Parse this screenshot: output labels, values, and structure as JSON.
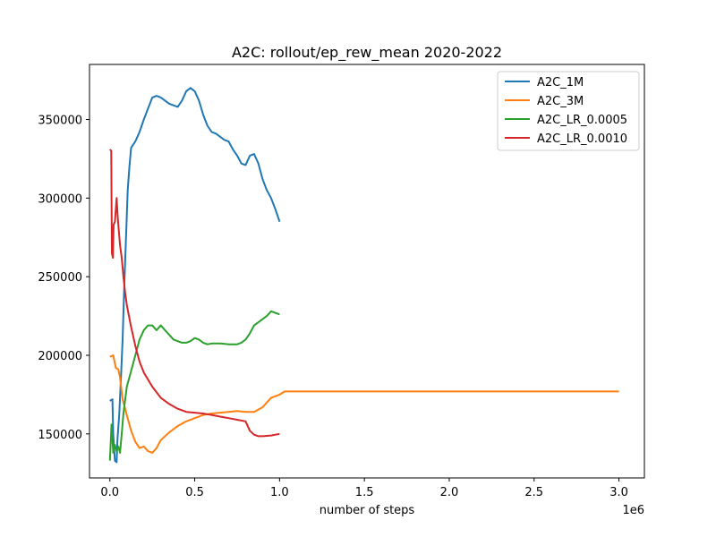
{
  "chart_data": {
    "type": "line",
    "title": "A2C: rollout/ep_rew_mean 2020-2022",
    "xlabel": "number of steps",
    "ylabel": "",
    "x_offset_label": "1e6",
    "xlim": [
      -120000,
      3150000
    ],
    "ylim": [
      122000,
      385000
    ],
    "x_ticks": [
      0,
      500000,
      1000000,
      1500000,
      2000000,
      2500000,
      3000000
    ],
    "x_tick_labels": [
      "0.0",
      "0.5",
      "1.0",
      "1.5",
      "2.0",
      "2.5",
      "3.0"
    ],
    "y_ticks": [
      150000,
      200000,
      250000,
      300000,
      350000
    ],
    "y_tick_labels": [
      "150000",
      "200000",
      "250000",
      "300000",
      "350000"
    ],
    "grid": false,
    "legend_position": "top-right",
    "series": [
      {
        "name": "A2C_1M",
        "color": "#1f77b4",
        "points": [
          [
            0,
            171000
          ],
          [
            15000,
            172000
          ],
          [
            20000,
            150000
          ],
          [
            30000,
            133000
          ],
          [
            40000,
            132000
          ],
          [
            45000,
            147000
          ],
          [
            55000,
            162000
          ],
          [
            65000,
            185000
          ],
          [
            75000,
            210000
          ],
          [
            85000,
            245000
          ],
          [
            95000,
            275000
          ],
          [
            105000,
            305000
          ],
          [
            115000,
            320000
          ],
          [
            125000,
            332000
          ],
          [
            150000,
            336000
          ],
          [
            175000,
            342000
          ],
          [
            200000,
            350000
          ],
          [
            225000,
            357000
          ],
          [
            250000,
            364000
          ],
          [
            275000,
            365000
          ],
          [
            300000,
            364000
          ],
          [
            325000,
            362000
          ],
          [
            350000,
            360000
          ],
          [
            375000,
            359000
          ],
          [
            400000,
            358000
          ],
          [
            425000,
            362000
          ],
          [
            450000,
            368000
          ],
          [
            475000,
            370000
          ],
          [
            500000,
            368000
          ],
          [
            525000,
            362000
          ],
          [
            550000,
            353000
          ],
          [
            575000,
            346000
          ],
          [
            600000,
            342000
          ],
          [
            625000,
            341000
          ],
          [
            650000,
            339000
          ],
          [
            675000,
            337000
          ],
          [
            700000,
            336000
          ],
          [
            725000,
            331000
          ],
          [
            750000,
            327000
          ],
          [
            775000,
            322000
          ],
          [
            800000,
            321000
          ],
          [
            825000,
            327000
          ],
          [
            850000,
            328000
          ],
          [
            875000,
            322000
          ],
          [
            900000,
            312000
          ],
          [
            925000,
            305000
          ],
          [
            950000,
            300000
          ],
          [
            975000,
            293000
          ],
          [
            1000000,
            285000
          ]
        ]
      },
      {
        "name": "A2C_3M",
        "color": "#ff7f0e",
        "points": [
          [
            0,
            199000
          ],
          [
            20000,
            200000
          ],
          [
            35000,
            192000
          ],
          [
            50000,
            191000
          ],
          [
            60000,
            186000
          ],
          [
            75000,
            172000
          ],
          [
            100000,
            162000
          ],
          [
            125000,
            152000
          ],
          [
            150000,
            145000
          ],
          [
            175000,
            141000
          ],
          [
            200000,
            142000
          ],
          [
            225000,
            139000
          ],
          [
            250000,
            138000
          ],
          [
            275000,
            141000
          ],
          [
            300000,
            146000
          ],
          [
            350000,
            151000
          ],
          [
            400000,
            155000
          ],
          [
            450000,
            158000
          ],
          [
            500000,
            160000
          ],
          [
            550000,
            162000
          ],
          [
            600000,
            163000
          ],
          [
            650000,
            163500
          ],
          [
            700000,
            164000
          ],
          [
            750000,
            164500
          ],
          [
            800000,
            164000
          ],
          [
            850000,
            164000
          ],
          [
            900000,
            167000
          ],
          [
            950000,
            173000
          ],
          [
            1000000,
            175000
          ],
          [
            1030000,
            177000
          ],
          [
            1100000,
            177000
          ],
          [
            1500000,
            177000
          ],
          [
            2000000,
            177000
          ],
          [
            2500000,
            177000
          ],
          [
            3000000,
            177000
          ]
        ]
      },
      {
        "name": "A2C_LR_0.0005",
        "color": "#2ca02c",
        "points": [
          [
            0,
            133000
          ],
          [
            10000,
            156000
          ],
          [
            20000,
            138000
          ],
          [
            30000,
            143000
          ],
          [
            40000,
            139000
          ],
          [
            50000,
            142000
          ],
          [
            60000,
            138000
          ],
          [
            70000,
            150000
          ],
          [
            80000,
            163000
          ],
          [
            100000,
            180000
          ],
          [
            125000,
            190000
          ],
          [
            150000,
            200000
          ],
          [
            175000,
            210000
          ],
          [
            200000,
            216000
          ],
          [
            225000,
            219000
          ],
          [
            250000,
            219000
          ],
          [
            275000,
            216000
          ],
          [
            300000,
            219000
          ],
          [
            325000,
            216000
          ],
          [
            350000,
            213000
          ],
          [
            375000,
            210000
          ],
          [
            400000,
            209000
          ],
          [
            425000,
            208000
          ],
          [
            450000,
            208000
          ],
          [
            475000,
            209000
          ],
          [
            500000,
            211000
          ],
          [
            525000,
            210000
          ],
          [
            550000,
            208000
          ],
          [
            575000,
            207000
          ],
          [
            600000,
            207500
          ],
          [
            650000,
            207500
          ],
          [
            700000,
            207000
          ],
          [
            750000,
            207000
          ],
          [
            775000,
            208000
          ],
          [
            800000,
            210000
          ],
          [
            825000,
            214000
          ],
          [
            850000,
            219000
          ],
          [
            875000,
            221000
          ],
          [
            900000,
            223000
          ],
          [
            925000,
            225000
          ],
          [
            950000,
            228000
          ],
          [
            975000,
            227000
          ],
          [
            1000000,
            226000
          ]
        ]
      },
      {
        "name": "A2C_LR_0.0010",
        "color": "#d62728",
        "points": [
          [
            0,
            331000
          ],
          [
            8000,
            330000
          ],
          [
            12000,
            265000
          ],
          [
            18000,
            262000
          ],
          [
            22000,
            283000
          ],
          [
            30000,
            285000
          ],
          [
            40000,
            300000
          ],
          [
            45000,
            290000
          ],
          [
            50000,
            283000
          ],
          [
            60000,
            270000
          ],
          [
            70000,
            262000
          ],
          [
            80000,
            250000
          ],
          [
            90000,
            240000
          ],
          [
            100000,
            232000
          ],
          [
            125000,
            218000
          ],
          [
            150000,
            206000
          ],
          [
            175000,
            196000
          ],
          [
            200000,
            189000
          ],
          [
            250000,
            180000
          ],
          [
            300000,
            173000
          ],
          [
            350000,
            169000
          ],
          [
            400000,
            166000
          ],
          [
            450000,
            164000
          ],
          [
            500000,
            163500
          ],
          [
            550000,
            163000
          ],
          [
            600000,
            162000
          ],
          [
            650000,
            161000
          ],
          [
            700000,
            160000
          ],
          [
            750000,
            159000
          ],
          [
            800000,
            158000
          ],
          [
            825000,
            152000
          ],
          [
            850000,
            149500
          ],
          [
            875000,
            148500
          ],
          [
            900000,
            148500
          ],
          [
            950000,
            149000
          ],
          [
            1000000,
            150000
          ]
        ]
      }
    ]
  }
}
